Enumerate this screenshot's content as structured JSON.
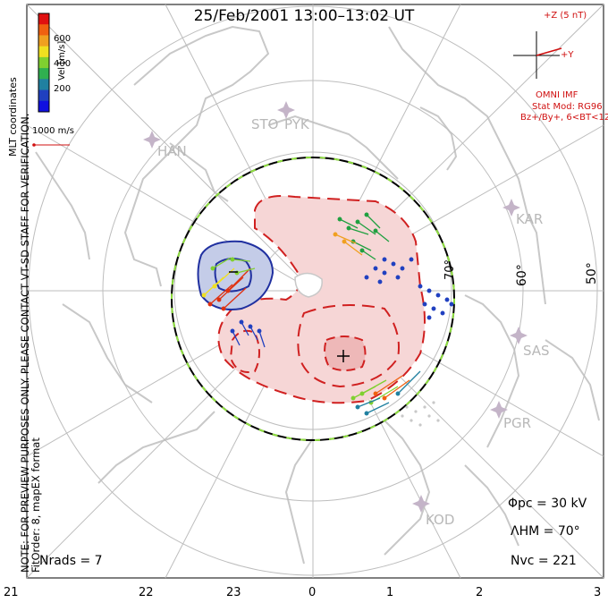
{
  "title": "25/Feb/2001 13:00–13:02 UT",
  "colorbar": {
    "label": "Vel [m/s]",
    "ticks": [
      "600",
      "400",
      "200"
    ],
    "colors": [
      "#e01010",
      "#f06010",
      "#f0a020",
      "#f0e020",
      "#80d030",
      "#30b050",
      "#2080a0",
      "#2040c0",
      "#1010e0"
    ]
  },
  "corner_label": "MLT coordinates",
  "ref_vector": "1000 m/s",
  "imf": {
    "z_label": "+Z (5 nT)",
    "y_label": "+Y",
    "source": "OMNI IMF",
    "model": "Stat Mod: RG96",
    "condition": "Bz+/By+, 6<BT<12"
  },
  "note": {
    "line1": "NOTE: FOR PREVIEW PURPOSES ONLY. PLEASE CONTACT VT-SD STAFF FOR VERIFICATION.",
    "line2": "FitOrder: 8, mapEX format"
  },
  "stations": [
    "STO",
    "PYK",
    "HAN",
    "KAR",
    "SAS",
    "PGR",
    "KOD"
  ],
  "lat_labels": [
    "70°",
    "60°",
    "50°"
  ],
  "mlt_ticks": [
    "21",
    "22",
    "23",
    "0",
    "1",
    "2",
    "3"
  ],
  "stats": {
    "phi_pc": "Φpc = 30 kV",
    "lambda_hm": "ΛHM = 70°",
    "n_vc": "Nvc = 221",
    "n_rads": "Nrads = 7"
  },
  "colors": {
    "positive_contour": "#d02020",
    "positive_fill": "#f6d6d6",
    "negative_contour": "#2030a0",
    "negative_fill": "#c4cce8",
    "grid": "#bdbdbd",
    "coast": "#c8c8c8"
  }
}
